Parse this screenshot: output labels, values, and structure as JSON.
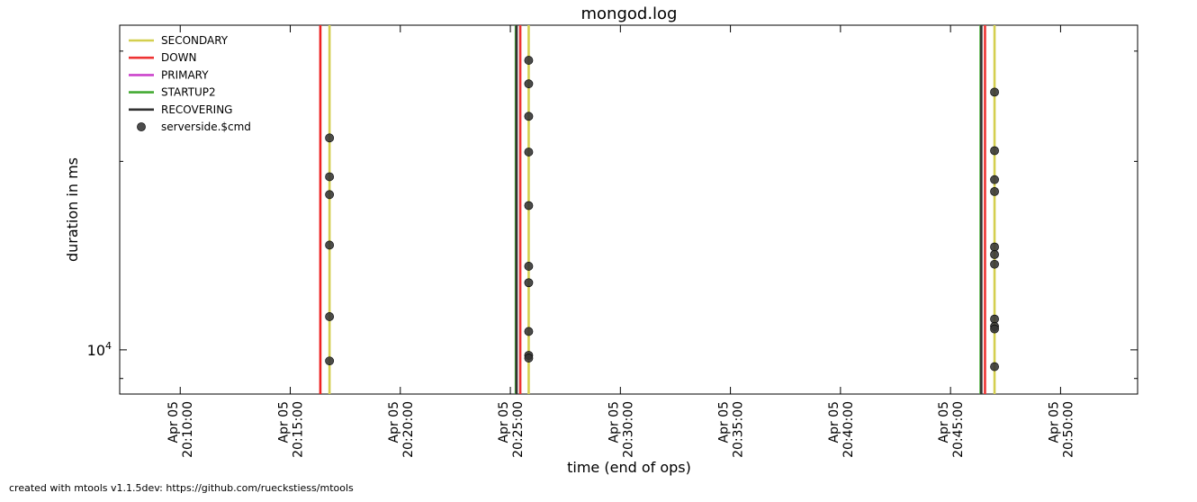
{
  "chart_data": {
    "type": "scatter",
    "title": "mongod.log",
    "xlabel": "time (end of ops)",
    "ylabel": "duration in ms",
    "x_range": [
      "2014-04-05T20:07:15",
      "2014-04-05T20:53:30"
    ],
    "y_scale": "log",
    "y_range": [
      8500,
      33000
    ],
    "y_tick_labels": [
      {
        "value": 10000,
        "label": "10",
        "exponent": "4"
      }
    ],
    "x_ticks": [
      {
        "time": "2014-04-05T20:10:00",
        "line1": "Apr 05",
        "line2": "20:10:00"
      },
      {
        "time": "2014-04-05T20:15:00",
        "line1": "Apr 05",
        "line2": "20:15:00"
      },
      {
        "time": "2014-04-05T20:20:00",
        "line1": "Apr 05",
        "line2": "20:20:00"
      },
      {
        "time": "2014-04-05T20:25:00",
        "line1": "Apr 05",
        "line2": "20:25:00"
      },
      {
        "time": "2014-04-05T20:30:00",
        "line1": "Apr 05",
        "line2": "20:30:00"
      },
      {
        "time": "2014-04-05T20:35:00",
        "line1": "Apr 05",
        "line2": "20:35:00"
      },
      {
        "time": "2014-04-05T20:40:00",
        "line1": "Apr 05",
        "line2": "20:40:00"
      },
      {
        "time": "2014-04-05T20:45:00",
        "line1": "Apr 05",
        "line2": "20:45:00"
      },
      {
        "time": "2014-04-05T20:50:00",
        "line1": "Apr 05",
        "line2": "20:50:00"
      }
    ],
    "legend_position": "top-left",
    "legend": [
      {
        "label": "SECONDARY",
        "color": "#d4cf4f",
        "kind": "line"
      },
      {
        "label": "DOWN",
        "color": "#ee3333",
        "kind": "line"
      },
      {
        "label": "PRIMARY",
        "color": "#cc44cc",
        "kind": "line"
      },
      {
        "label": "STARTUP2",
        "color": "#44aa33",
        "kind": "line"
      },
      {
        "label": "RECOVERING",
        "color": "#333333",
        "kind": "line"
      },
      {
        "label": "serverside.$cmd",
        "color": "#333333",
        "kind": "marker"
      }
    ],
    "state_changes": [
      {
        "time": "2014-04-05T20:16:22",
        "state": "DOWN",
        "color": "#ee2222"
      },
      {
        "time": "2014-04-05T20:16:47",
        "state": "SECONDARY",
        "color": "#d4cf4f"
      },
      {
        "time": "2014-04-05T20:25:15",
        "state": "STARTUP2",
        "color": "#44aa33"
      },
      {
        "time": "2014-04-05T20:25:17",
        "state": "RECOVERING",
        "color": "#333333"
      },
      {
        "time": "2014-04-05T20:25:27",
        "state": "DOWN",
        "color": "#ee3333"
      },
      {
        "time": "2014-04-05T20:25:50",
        "state": "SECONDARY",
        "color": "#d4cf4f"
      },
      {
        "time": "2014-04-05T20:46:22",
        "state": "STARTUP2",
        "color": "#44aa33"
      },
      {
        "time": "2014-04-05T20:46:24",
        "state": "RECOVERING",
        "color": "#333333"
      },
      {
        "time": "2014-04-05T20:46:34",
        "state": "DOWN",
        "color": "#ee3333"
      },
      {
        "time": "2014-04-05T20:47:00",
        "state": "SECONDARY",
        "color": "#d4cf4f"
      }
    ],
    "series": [
      {
        "name": "serverside.$cmd",
        "color": "#333333",
        "points": [
          {
            "x": "2014-04-05T20:16:47",
            "y": 21800
          },
          {
            "x": "2014-04-05T20:16:47",
            "y": 18900
          },
          {
            "x": "2014-04-05T20:16:47",
            "y": 17700
          },
          {
            "x": "2014-04-05T20:16:47",
            "y": 14700
          },
          {
            "x": "2014-04-05T20:16:47",
            "y": 11300
          },
          {
            "x": "2014-04-05T20:16:47",
            "y": 9600
          },
          {
            "x": "2014-04-05T20:25:50",
            "y": 29000
          },
          {
            "x": "2014-04-05T20:25:50",
            "y": 26600
          },
          {
            "x": "2014-04-05T20:25:50",
            "y": 23600
          },
          {
            "x": "2014-04-05T20:25:50",
            "y": 20700
          },
          {
            "x": "2014-04-05T20:25:50",
            "y": 17000
          },
          {
            "x": "2014-04-05T20:25:50",
            "y": 13600
          },
          {
            "x": "2014-04-05T20:25:50",
            "y": 12800
          },
          {
            "x": "2014-04-05T20:25:50",
            "y": 10700
          },
          {
            "x": "2014-04-05T20:25:50",
            "y": 9800
          },
          {
            "x": "2014-04-05T20:25:50",
            "y": 9700
          },
          {
            "x": "2014-04-05T20:47:00",
            "y": 25800
          },
          {
            "x": "2014-04-05T20:47:00",
            "y": 20800
          },
          {
            "x": "2014-04-05T20:47:00",
            "y": 18700
          },
          {
            "x": "2014-04-05T20:47:00",
            "y": 17900
          },
          {
            "x": "2014-04-05T20:47:00",
            "y": 14600
          },
          {
            "x": "2014-04-05T20:47:00",
            "y": 14200
          },
          {
            "x": "2014-04-05T20:47:00",
            "y": 13700
          },
          {
            "x": "2014-04-05T20:47:00",
            "y": 11200
          },
          {
            "x": "2014-04-05T20:47:00",
            "y": 10900
          },
          {
            "x": "2014-04-05T20:47:00",
            "y": 10800
          },
          {
            "x": "2014-04-05T20:47:00",
            "y": 9400
          }
        ]
      }
    ]
  },
  "footer": "created with mtools v1.1.5dev: https://github.com/rueckstiess/mtools"
}
